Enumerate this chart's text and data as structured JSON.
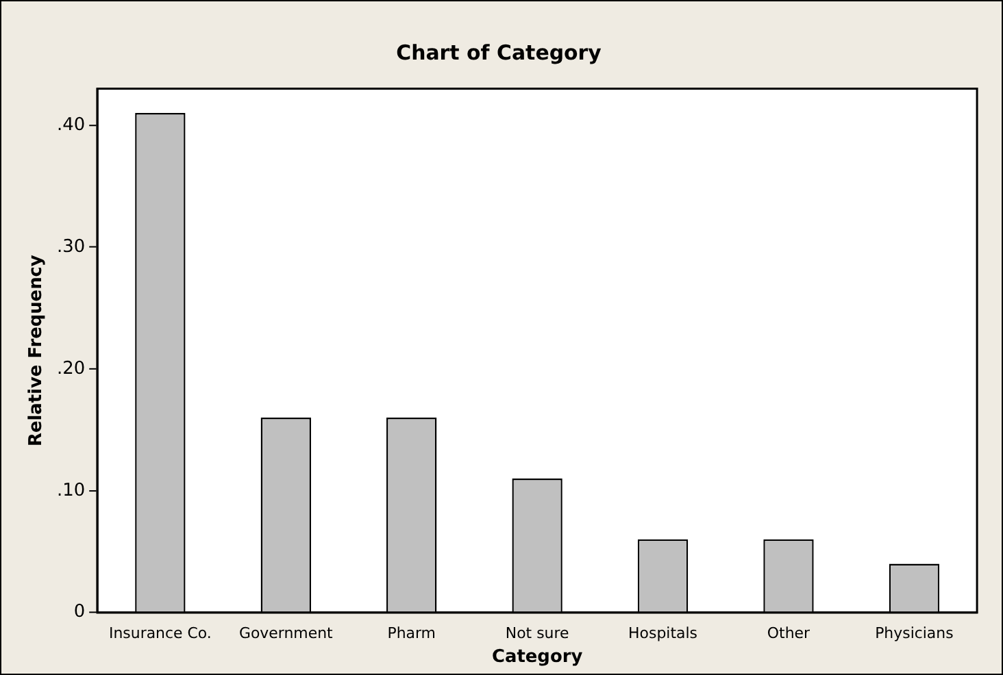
{
  "chart_data": {
    "type": "bar",
    "title": "Chart of Category",
    "xlabel": "Category",
    "ylabel": "Relative Frequency",
    "categories": [
      "Insurance Co.",
      "Government",
      "Pharm",
      "Not sure",
      "Hospitals",
      "Other",
      "Physicians"
    ],
    "values": [
      0.41,
      0.16,
      0.16,
      0.11,
      0.06,
      0.06,
      0.04
    ],
    "color": "#c0c0c0",
    "ylim": [
      0,
      0.43
    ],
    "yticks": [
      {
        "value": 0,
        "label": "0"
      },
      {
        "value": 0.1,
        "label": ".10"
      },
      {
        "value": 0.2,
        "label": ".20"
      },
      {
        "value": 0.3,
        "label": ".30"
      },
      {
        "value": 0.4,
        "label": ".40"
      }
    ],
    "grid": false,
    "legend": false
  }
}
